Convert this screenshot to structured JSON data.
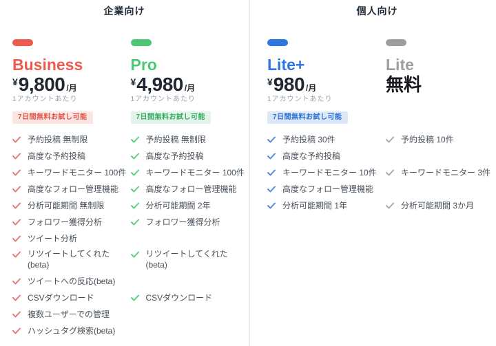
{
  "sections": [
    {
      "title": "企業向け",
      "plans": [
        {
          "name": "Business",
          "accent": "#ee5a4e",
          "check_color": "#e27b73",
          "currency": "¥",
          "amount": "9,800",
          "per": "/月",
          "note": "1アカウントあたり",
          "badge": "7日間無料お試し可能",
          "badge_bg": "#fbe5e3",
          "badge_color": "#e05447",
          "features": [
            "予約投稿 無制限",
            "高度な予約投稿",
            "キーワードモニター 100件",
            "高度なフォロー管理機能",
            "分析可能期間 無制限",
            "フォロワー獲得分析",
            "ツイート分析",
            "リツイートしてくれた\n(beta)",
            "ツイートへの反応(beta)",
            "CSVダウンロード",
            "複数ユーザーでの管理",
            "ハッシュタグ検索(beta)"
          ]
        },
        {
          "name": "Pro",
          "accent": "#4bc873",
          "check_color": "#5ecb89",
          "currency": "¥",
          "amount": "4,980",
          "per": "/月",
          "note": "1アカウントあたり",
          "badge": "7日間無料お試し可能",
          "badge_bg": "#e0f4e8",
          "badge_color": "#3caa64",
          "features": [
            "予約投稿 無制限",
            "高度な予約投稿",
            "キーワードモニター 100件",
            "高度なフォロー管理機能",
            "分析可能期間 2年",
            "フォロワー獲得分析",
            null,
            "リツイートしてくれた\n(beta)",
            null,
            "CSVダウンロード",
            null,
            null
          ]
        }
      ]
    },
    {
      "title": "個人向け",
      "plans": [
        {
          "name": "Lite+",
          "accent": "#2d76e0",
          "check_color": "#5a8adf",
          "currency": "¥",
          "amount": "980",
          "per": "/月",
          "note": "1アカウントあたり",
          "badge": "7日間無料お試し可能",
          "badge_bg": "#dce8f7",
          "badge_color": "#2a6fd4",
          "features": [
            "予約投稿 30件",
            "高度な予約投稿",
            "キーワードモニター 10件",
            "高度なフォロー管理機能",
            "分析可能期間 1年",
            null,
            null,
            null,
            null,
            null,
            null,
            null
          ]
        },
        {
          "name": "Lite",
          "accent": "#9e9e9e",
          "check_color": "#aaaaaa",
          "free_label": "無料",
          "note": "",
          "badge": null,
          "features": [
            "予約投稿 10件",
            null,
            "キーワードモニター 3件",
            null,
            "分析可能期間 3か月",
            null,
            null,
            null,
            null,
            null,
            null,
            null
          ]
        }
      ]
    }
  ]
}
